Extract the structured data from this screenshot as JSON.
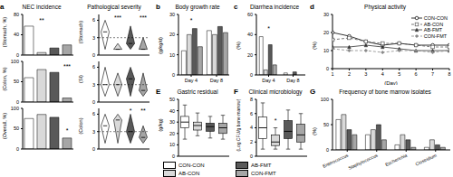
{
  "chart_data": [
    {
      "type": "bar",
      "panel_label": "a",
      "title": "NEC incidence",
      "ylabel": "(Stomach, %)",
      "categories": [
        null,
        null,
        null,
        null
      ],
      "values": [
        57,
        5,
        14,
        20
      ],
      "colors": [
        "#ffffff",
        "#d9d9d9",
        "#595959",
        "#a6a6a6"
      ],
      "ylim": [
        0,
        80
      ],
      "yticks": [
        0,
        40,
        80
      ],
      "tick_labels": "y",
      "annotations": [
        {
          "text": "**",
          "x": 1,
          "y": 68
        }
      ]
    },
    {
      "type": "bar",
      "ylabel": "(Colon, %)",
      "categories": [
        null,
        null,
        null,
        null
      ],
      "values": [
        60,
        80,
        73,
        10
      ],
      "colors": [
        "#ffffff",
        "#d9d9d9",
        "#595959",
        "#a6a6a6"
      ],
      "ylim": [
        0,
        100
      ],
      "yticks": [
        0,
        50,
        100
      ],
      "tick_labels": "y",
      "annotations": [
        {
          "text": "***",
          "x": 3,
          "y": 88
        }
      ]
    },
    {
      "type": "bar",
      "ylabel": "(Overall, %)",
      "categories": [
        null,
        null,
        null,
        null
      ],
      "values": [
        75,
        85,
        78,
        27
      ],
      "colors": [
        "#ffffff",
        "#d9d9d9",
        "#595959",
        "#a6a6a6"
      ],
      "ylim": [
        0,
        100
      ],
      "yticks": [
        0,
        50,
        100
      ],
      "tick_labels": "y",
      "annotations": [
        {
          "text": "*",
          "x": 3,
          "y": 45
        }
      ]
    },
    {
      "type": "violin",
      "title": "Pathological severity",
      "ylabel": "(Stomach)",
      "categories": [
        null,
        null,
        null,
        null
      ],
      "stats": [
        {
          "min": 1,
          "median": 4,
          "max": 6
        },
        {
          "min": 1,
          "median": 1,
          "max": 2
        },
        {
          "min": 1,
          "median": 2,
          "max": 5
        },
        {
          "min": 1,
          "median": 1,
          "max": 3
        }
      ],
      "colors": [
        "#ffffff",
        "#d9d9d9",
        "#595959",
        "#a6a6a6"
      ],
      "ylim": [
        0,
        7
      ],
      "yticks": [
        0,
        3,
        6
      ],
      "threshold": 3,
      "tick_labels": "y",
      "annotations": [
        {
          "text": "***",
          "x": 1,
          "y": 6.4
        },
        {
          "text": "***",
          "x": 3,
          "y": 6.4
        }
      ]
    },
    {
      "type": "violin",
      "ylabel": "(SI)",
      "categories": [
        null,
        null,
        null,
        null
      ],
      "stats": [
        {
          "min": 1,
          "median": 3,
          "max": 6
        },
        {
          "min": 1,
          "median": 3,
          "max": 5
        },
        {
          "min": 1,
          "median": 4,
          "max": 6
        },
        {
          "min": 1,
          "median": 2,
          "max": 5
        }
      ],
      "colors": [
        "#ffffff",
        "#d9d9d9",
        "#595959",
        "#a6a6a6"
      ],
      "ylim": [
        0,
        7
      ],
      "yticks": [
        0,
        3,
        6
      ],
      "threshold": 3,
      "tick_labels": "y"
    },
    {
      "type": "violin",
      "ylabel": "(Colon)",
      "categories": [
        null,
        null,
        null,
        null
      ],
      "stats": [
        {
          "min": 1,
          "median": 4,
          "max": 6
        },
        {
          "min": 1,
          "median": 5,
          "max": 6
        },
        {
          "min": 1,
          "median": 3,
          "max": 6
        },
        {
          "min": 1,
          "median": 2,
          "max": 4
        }
      ],
      "colors": [
        "#ffffff",
        "#d9d9d9",
        "#595959",
        "#a6a6a6"
      ],
      "ylim": [
        0,
        7
      ],
      "yticks": [
        0,
        3,
        6
      ],
      "threshold": 3,
      "tick_labels": "y",
      "annotations": [
        {
          "text": "*",
          "x": 2,
          "y": 6.6
        },
        {
          "text": "**",
          "x": 3,
          "y": 6.6
        }
      ]
    },
    {
      "type": "bar",
      "panel_label": "b",
      "title": "Body growth rate",
      "ylabel": "(g/kg/d)",
      "categories": [
        "Day 4",
        "Day 8"
      ],
      "series": [
        {
          "name": "CON-CON",
          "color": "#ffffff",
          "values": [
            12,
            22
          ]
        },
        {
          "name": "AB-CON",
          "color": "#d9d9d9",
          "values": [
            20,
            20
          ]
        },
        {
          "name": "AB-FMT",
          "color": "#595959",
          "values": [
            23,
            24
          ]
        },
        {
          "name": "CON-FMT",
          "color": "#a6a6a6",
          "values": [
            14,
            21
          ]
        }
      ],
      "ylim": [
        0,
        30
      ],
      "yticks": [
        0,
        10,
        20,
        30
      ],
      "annotations": [
        {
          "text": "*",
          "x": 0,
          "y": 27
        }
      ]
    },
    {
      "type": "bar",
      "panel_label": "c",
      "title": "Diarrhea incidence",
      "ylabel": "(%)",
      "categories": [
        "Day 4",
        "Day 8"
      ],
      "series": [
        {
          "name": "CON-CON",
          "color": "#ffffff",
          "values": [
            38,
            2
          ]
        },
        {
          "name": "AB-CON",
          "color": "#d9d9d9",
          "values": [
            5,
            0
          ]
        },
        {
          "name": "AB-FMT",
          "color": "#595959",
          "values": [
            30,
            3
          ]
        },
        {
          "name": "CON-FMT",
          "color": "#a6a6a6",
          "values": [
            10,
            0
          ]
        }
      ],
      "ylim": [
        0,
        60
      ],
      "yticks": [
        0,
        20,
        40,
        60
      ],
      "annotations": [
        {
          "text": "*",
          "x": 0,
          "y": 46
        }
      ]
    },
    {
      "type": "line",
      "panel_label": "d",
      "title": "Physical activity",
      "ylabel": "(%)",
      "xlabel": "(Day)",
      "x": [
        1,
        2,
        3,
        4,
        5,
        6,
        7,
        8
      ],
      "series": [
        {
          "name": "CON-CON",
          "color": "#000000",
          "marker": "circle",
          "line_style": "solid",
          "values": [
            20,
            18,
            15,
            13,
            14,
            13,
            13,
            13
          ]
        },
        {
          "name": "AB-CON",
          "color": "#555555",
          "marker": "square",
          "line_style": "dashed",
          "values": [
            16,
            17,
            15,
            14,
            14,
            13,
            12,
            12
          ]
        },
        {
          "name": "AB-FMT",
          "color": "#333333",
          "marker": "triangle",
          "line_style": "solid",
          "values": [
            12,
            12,
            13,
            12,
            11,
            10,
            10,
            10
          ]
        },
        {
          "name": "CON-FMT",
          "color": "#888888",
          "marker": "diamond",
          "line_style": "dashed",
          "values": [
            11,
            10,
            10,
            9,
            10,
            10,
            9,
            10
          ]
        }
      ],
      "xlim": [
        1,
        8
      ],
      "xticks": [
        1,
        2,
        3,
        4,
        5,
        6,
        7,
        8
      ],
      "ylim": [
        0,
        30
      ],
      "yticks": [
        0,
        10,
        20,
        30
      ],
      "legend": "upper right"
    },
    {
      "type": "box",
      "panel_label": "E",
      "title": "Gastric residual",
      "ylabel": "(g/kg)",
      "categories": [
        null,
        null,
        null,
        null
      ],
      "stats": [
        {
          "min": 15,
          "q1": 25,
          "median": 30,
          "q3": 35,
          "max": 45
        },
        {
          "min": 18,
          "q1": 23,
          "median": 27,
          "q3": 30,
          "max": 38
        },
        {
          "min": 16,
          "q1": 22,
          "median": 26,
          "q3": 29,
          "max": 35
        },
        {
          "min": 15,
          "q1": 20,
          "median": 25,
          "q3": 29,
          "max": 36
        }
      ],
      "colors": [
        "#ffffff",
        "#d9d9d9",
        "#595959",
        "#a6a6a6"
      ],
      "ylim": [
        0,
        50
      ],
      "yticks": [
        0,
        10,
        20,
        30,
        40,
        50
      ],
      "tick_labels": "y"
    },
    {
      "type": "box",
      "panel_label": "F",
      "title": "Clinical microbiology",
      "ylabel": "(Log CFU/g bone marrow)",
      "categories": [
        null,
        null,
        null,
        null
      ],
      "stats": [
        {
          "min": 1,
          "q1": 2.5,
          "median": 4,
          "q3": 5.5,
          "max": 7.5
        },
        {
          "min": 1,
          "q1": 1.5,
          "median": 2,
          "q3": 3,
          "max": 4
        },
        {
          "min": 1,
          "q1": 2.5,
          "median": 3.5,
          "q3": 5,
          "max": 6.5
        },
        {
          "min": 1,
          "q1": 2,
          "median": 3,
          "q3": 4.5,
          "max": 6
        }
      ],
      "colors": [
        "#ffffff",
        "#d9d9d9",
        "#595959",
        "#a6a6a6"
      ],
      "ylim": [
        0,
        8
      ],
      "yticks": [
        0,
        2,
        4,
        6,
        8
      ],
      "tick_labels": "y",
      "annotations": [
        {
          "text": "*",
          "x": 1,
          "y": 5
        }
      ]
    },
    {
      "type": "bar",
      "panel_label": "G",
      "title": "Frequency of bone marrow isolates",
      "ylabel": "(%)",
      "categories": [
        "Enterococcus",
        "Staphylococcus",
        "Escherichia",
        "Clostridium"
      ],
      "series": [
        {
          "name": "CON-CON",
          "color": "#ffffff",
          "values": [
            60,
            30,
            10,
            5
          ]
        },
        {
          "name": "AB-CON",
          "color": "#d9d9d9",
          "values": [
            70,
            40,
            30,
            20
          ]
        },
        {
          "name": "AB-FMT",
          "color": "#595959",
          "values": [
            40,
            50,
            20,
            10
          ]
        },
        {
          "name": "CON-FMT",
          "color": "#a6a6a6",
          "values": [
            30,
            20,
            5,
            5
          ]
        }
      ],
      "ylim": [
        0,
        100
      ],
      "yticks": [
        0,
        50,
        100
      ],
      "legend": "bottom"
    }
  ]
}
